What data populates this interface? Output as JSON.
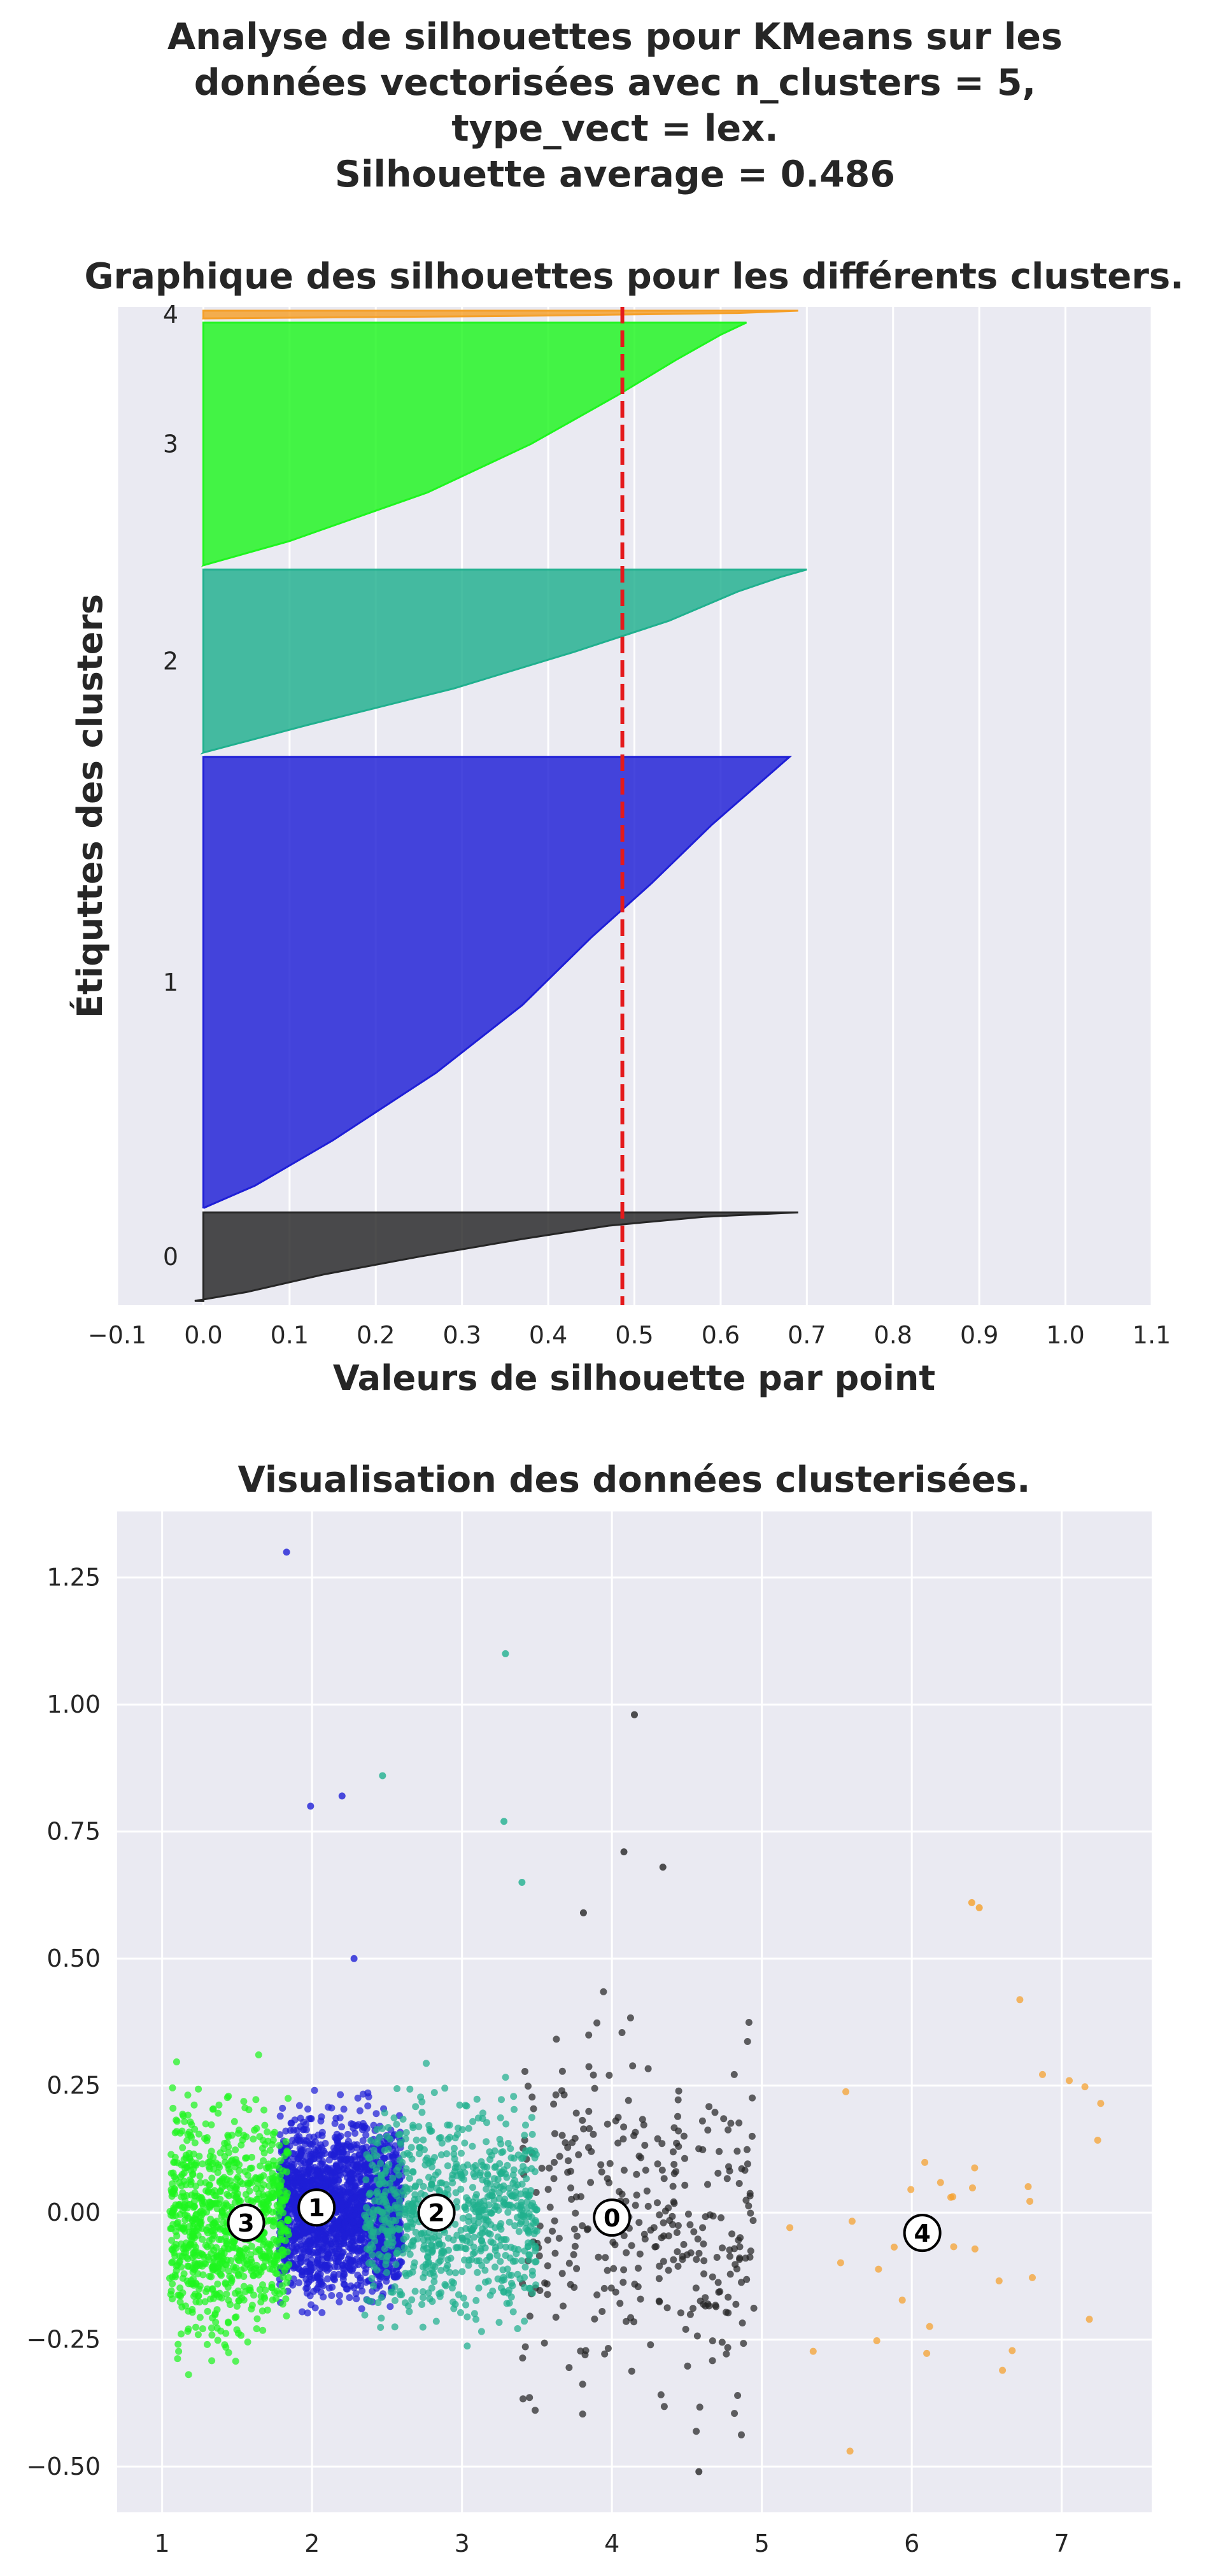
{
  "suptitle": "Analyse de silhouettes pour KMeans sur les\ndonnées vectorisées avec n_clusters = 5,\ntype_vect = lex.\nSilhouette average = 0.486",
  "chart_data": [
    {
      "type": "area",
      "title": "Graphique des silhouettes pour les différents clusters.",
      "xlabel": "Valeurs de silhouette par point",
      "ylabel": "Étiquttes des clusters",
      "xlim": [
        -0.1,
        1.1
      ],
      "xticks": [
        "−0.1",
        "0.0",
        "0.1",
        "0.2",
        "0.3",
        "0.4",
        "0.5",
        "0.6",
        "0.7",
        "0.8",
        "0.9",
        "1.0",
        "1.1"
      ],
      "grid": true,
      "silhouette_average": 0.486,
      "average_line_color": "#e41a1c",
      "clusters": [
        {
          "label": "0",
          "color": "#262626",
          "y_range": [
            10,
            218
          ],
          "curve": [
            [
              0.0,
              -0.01
            ],
            [
              0.1,
              0.05
            ],
            [
              0.3,
              0.14
            ],
            [
              0.5,
              0.25
            ],
            [
              0.7,
              0.37
            ],
            [
              0.85,
              0.47
            ],
            [
              0.95,
              0.58
            ],
            [
              1.0,
              0.69
            ]
          ]
        },
        {
          "label": "1",
          "color": "#1f1fd6",
          "y_range": [
            228,
            1288
          ],
          "curve": [
            [
              0.0,
              0.0
            ],
            [
              0.05,
              0.06
            ],
            [
              0.15,
              0.15
            ],
            [
              0.3,
              0.27
            ],
            [
              0.45,
              0.37
            ],
            [
              0.6,
              0.45
            ],
            [
              0.72,
              0.52
            ],
            [
              0.85,
              0.59
            ],
            [
              0.95,
              0.65
            ],
            [
              1.0,
              0.68
            ]
          ]
        },
        {
          "label": "2",
          "color": "#20b08e",
          "y_range": [
            1298,
            1728
          ],
          "curve": [
            [
              0.0,
              0.0
            ],
            [
              0.15,
              0.12
            ],
            [
              0.35,
              0.29
            ],
            [
              0.55,
              0.43
            ],
            [
              0.72,
              0.54
            ],
            [
              0.88,
              0.62
            ],
            [
              0.96,
              0.67
            ],
            [
              1.0,
              0.7
            ]
          ]
        },
        {
          "label": "3",
          "color": "#1ef51e",
          "y_range": [
            1738,
            2308
          ],
          "curve": [
            [
              0.0,
              0.0
            ],
            [
              0.1,
              0.1
            ],
            [
              0.3,
              0.26
            ],
            [
              0.5,
              0.38
            ],
            [
              0.7,
              0.48
            ],
            [
              0.85,
              0.55
            ],
            [
              0.95,
              0.6
            ],
            [
              1.0,
              0.63
            ]
          ]
        },
        {
          "label": "4",
          "color": "#f5a02a",
          "y_range": [
            2318,
            2336
          ],
          "curve": [
            [
              0.0,
              0.0
            ],
            [
              0.3,
              0.35
            ],
            [
              0.7,
              0.62
            ],
            [
              1.0,
              0.69
            ]
          ]
        }
      ]
    },
    {
      "type": "scatter",
      "title": "Visualisation des données clusterisées.",
      "xlim": [
        0.7,
        7.6
      ],
      "ylim": [
        -0.59,
        1.38
      ],
      "xticks": [
        1,
        2,
        3,
        4,
        5,
        6,
        7
      ],
      "yticks": [
        -0.5,
        -0.25,
        0.0,
        0.25,
        0.5,
        0.75,
        1.0,
        1.25
      ],
      "ytick_labels": [
        "−0.50",
        "−0.25",
        "0.00",
        "0.25",
        "0.50",
        "0.75",
        "1.00",
        "1.25"
      ],
      "grid": true,
      "clusters": [
        {
          "label": "0",
          "color": "#262626",
          "center": [
            4.0,
            -0.01
          ],
          "x_range": [
            3.4,
            4.95
          ],
          "y_spread": 0.17,
          "n": 330
        },
        {
          "label": "1",
          "color": "#1f1fd6",
          "center": [
            2.03,
            0.01
          ],
          "x_range": [
            1.78,
            2.6
          ],
          "y_spread": 0.08,
          "n": 2000
        },
        {
          "label": "2",
          "color": "#20b08e",
          "center": [
            2.83,
            0.0
          ],
          "x_range": [
            2.35,
            3.5
          ],
          "y_spread": 0.1,
          "n": 800
        },
        {
          "label": "3",
          "color": "#1ef51e",
          "center": [
            1.56,
            -0.02
          ],
          "x_range": [
            1.05,
            1.85
          ],
          "y_spread": 0.11,
          "n": 900
        },
        {
          "label": "4",
          "color": "#f5a02a",
          "center": [
            6.07,
            -0.04
          ],
          "x_range": [
            5.05,
            7.3
          ],
          "y_spread": 0.25,
          "n": 34
        }
      ],
      "outliers": [
        {
          "x": 1.83,
          "y": 1.3,
          "cluster": "1"
        },
        {
          "x": 1.99,
          "y": 0.8,
          "cluster": "1"
        },
        {
          "x": 2.2,
          "y": 0.82,
          "cluster": "1"
        },
        {
          "x": 2.28,
          "y": 0.5,
          "cluster": "1"
        },
        {
          "x": 2.47,
          "y": 0.86,
          "cluster": "2"
        },
        {
          "x": 3.29,
          "y": 1.1,
          "cluster": "2"
        },
        {
          "x": 3.28,
          "y": 0.77,
          "cluster": "2"
        },
        {
          "x": 3.4,
          "y": 0.65,
          "cluster": "2"
        },
        {
          "x": 4.15,
          "y": 0.98,
          "cluster": "0"
        },
        {
          "x": 4.08,
          "y": 0.71,
          "cluster": "0"
        },
        {
          "x": 4.34,
          "y": 0.68,
          "cluster": "0"
        },
        {
          "x": 3.81,
          "y": 0.59,
          "cluster": "0"
        },
        {
          "x": 4.58,
          "y": -0.51,
          "cluster": "0"
        },
        {
          "x": 6.4,
          "y": 0.61,
          "cluster": "4"
        },
        {
          "x": 6.45,
          "y": 0.6,
          "cluster": "4"
        }
      ]
    }
  ]
}
